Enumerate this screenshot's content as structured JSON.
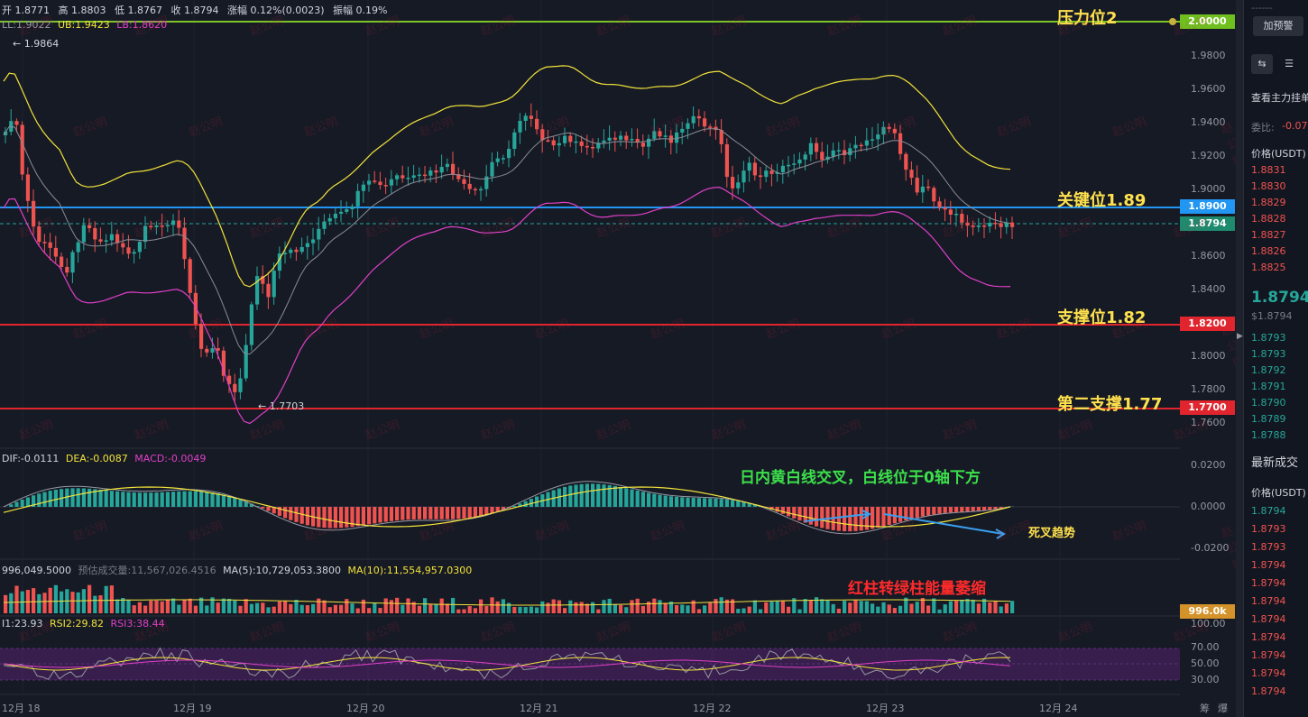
{
  "header": {
    "open": "开 1.8771",
    "high": "高 1.8803",
    "low": "低 1.8767",
    "close": "收 1.8794",
    "change": "涨幅 0.12%(0.0023)",
    "amplitude": "振幅 0.19%"
  },
  "boll_legend": {
    "ll": "LL:1.9022",
    "ub": "UB:1.9423",
    "lb": "LB:1.8620"
  },
  "macd_legend": {
    "dif": "DIF:-0.0111",
    "dea": "DEA:-0.0087",
    "macd": "MACD:-0.0049"
  },
  "vol_legend": {
    "vol": "996,049.5000",
    "est": "预估成交量:11,567,026.4516",
    "ma5": "MA(5):10,729,053.3800",
    "ma10": "MA(10):11,554,957.0300"
  },
  "rsi_legend": {
    "rsi1": "I1:23.93",
    "rsi2": "RSI2:29.82",
    "rsi3": "RSI3:38.44"
  },
  "annotations": {
    "resistance": "压力位2",
    "key": "关键位1.89",
    "support": "支撑位1.82",
    "support2": "第二支撑1.77",
    "macd_note": "日内黄白线交叉，白线位于0轴下方",
    "death_cross": "死叉趋势",
    "vol_note": "红柱转绿柱能量萎缩",
    "high_mark": "← 1.9864",
    "low_mark": "← 1.7703"
  },
  "price_tags": {
    "t2000": "2.0000",
    "t1890": "1.8900",
    "t1879": "1.8794",
    "t1820": "1.8200",
    "t1770": "1.7700",
    "vol": "996.0k"
  },
  "price_axis": [
    "1.9800",
    "1.9600",
    "1.9400",
    "1.9200",
    "1.9000",
    "1.8600",
    "1.8400",
    "1.8000",
    "1.7800",
    "1.7600"
  ],
  "macd_axis": [
    "0.0200",
    "0.0000",
    "-0.0200"
  ],
  "rsi_axis": [
    "100.00",
    "70.00",
    "50.00",
    "30.00"
  ],
  "dates": [
    "12月 18",
    "12月 19",
    "12月 20",
    "12月 21",
    "12月 22",
    "12月 23",
    "12月 24"
  ],
  "bottom_right": {
    "a": "筹",
    "b": "爆"
  },
  "watermark": "赵公明",
  "colors": {
    "up": "#26a69a",
    "down": "#ef5350",
    "resistance": "#7ec22a",
    "key": "#2196f3",
    "support": "#e0252e",
    "boll_mid": "#8a8d96",
    "boll_up": "#f2e33a",
    "boll_low": "#e040c8"
  },
  "right_panel": {
    "add_alert": "加预警",
    "view_orders": "查看主力挂单",
    "ratio": "委比:",
    "ratio_val": "-0.07",
    "price_col": "价格(USDT)",
    "asks": [
      "1.8831",
      "1.8830",
      "1.8829",
      "1.8828",
      "1.8827",
      "1.8826",
      "1.8825"
    ],
    "last": "1.8794",
    "last_usd": "$1.8794",
    "bids": [
      "1.8793",
      "1.8793",
      "1.8792",
      "1.8791",
      "1.8790",
      "1.8789",
      "1.8788"
    ],
    "trades_title": "最新成交",
    "trades_price_col": "价格(USDT)",
    "trades": [
      "1.8794",
      "1.8793",
      "1.8793",
      "1.8794",
      "1.8794",
      "1.8794",
      "1.8794",
      "1.8794",
      "1.8794",
      "1.8794",
      "1.8794"
    ]
  }
}
